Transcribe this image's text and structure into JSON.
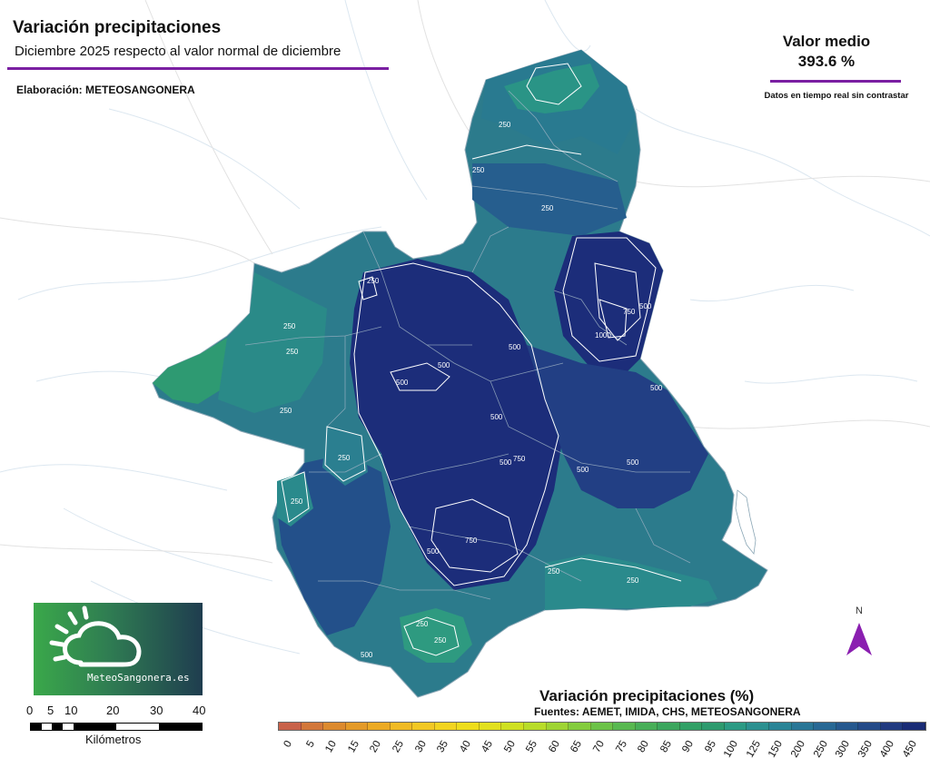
{
  "header": {
    "title": "Variación precipitaciones",
    "subtitle": "Diciembre 2025 respecto al valor normal de diciembre",
    "credit": "Elaboración: METEOSANGONERA"
  },
  "summary": {
    "label": "Valor medio",
    "value": "393.6 %",
    "note": "Datos en tiempo real sin contrastar"
  },
  "logo": {
    "text": "MeteoSangonera.es"
  },
  "scale": {
    "ticks": [
      "0",
      "5",
      "10",
      "20",
      "30",
      "40"
    ],
    "unit": "Kilómetros"
  },
  "north": {
    "label": "N"
  },
  "isolines": [
    "250",
    "500",
    "750",
    "1000"
  ],
  "legend": {
    "title": "Variación precipitaciones (%)",
    "sources": "Fuentes: AEMET, IMIDA, CHS, METEOSANGONERA",
    "classes": [
      "0",
      "5",
      "10",
      "15",
      "20",
      "25",
      "30",
      "35",
      "40",
      "45",
      "50",
      "55",
      "60",
      "65",
      "70",
      "75",
      "80",
      "85",
      "90",
      "95",
      "100",
      "125",
      "150",
      "200",
      "250",
      "300",
      "350",
      "400",
      "450"
    ],
    "colors": [
      "#c8624a",
      "#d2773a",
      "#dc8a2e",
      "#e49a28",
      "#ecaa24",
      "#f0ba24",
      "#f2c824",
      "#f2d420",
      "#eedd1c",
      "#e2e01e",
      "#cfe022",
      "#b8dc2a",
      "#9fd434",
      "#84cc3e",
      "#6cc248",
      "#58b850",
      "#48ae58",
      "#3ca65e",
      "#32a066",
      "#2e9a6e",
      "#2c9a84",
      "#2c9090",
      "#2a8496",
      "#297696",
      "#286894",
      "#26588e",
      "#244a88",
      "#213a80",
      "#1a2c76"
    ]
  }
}
